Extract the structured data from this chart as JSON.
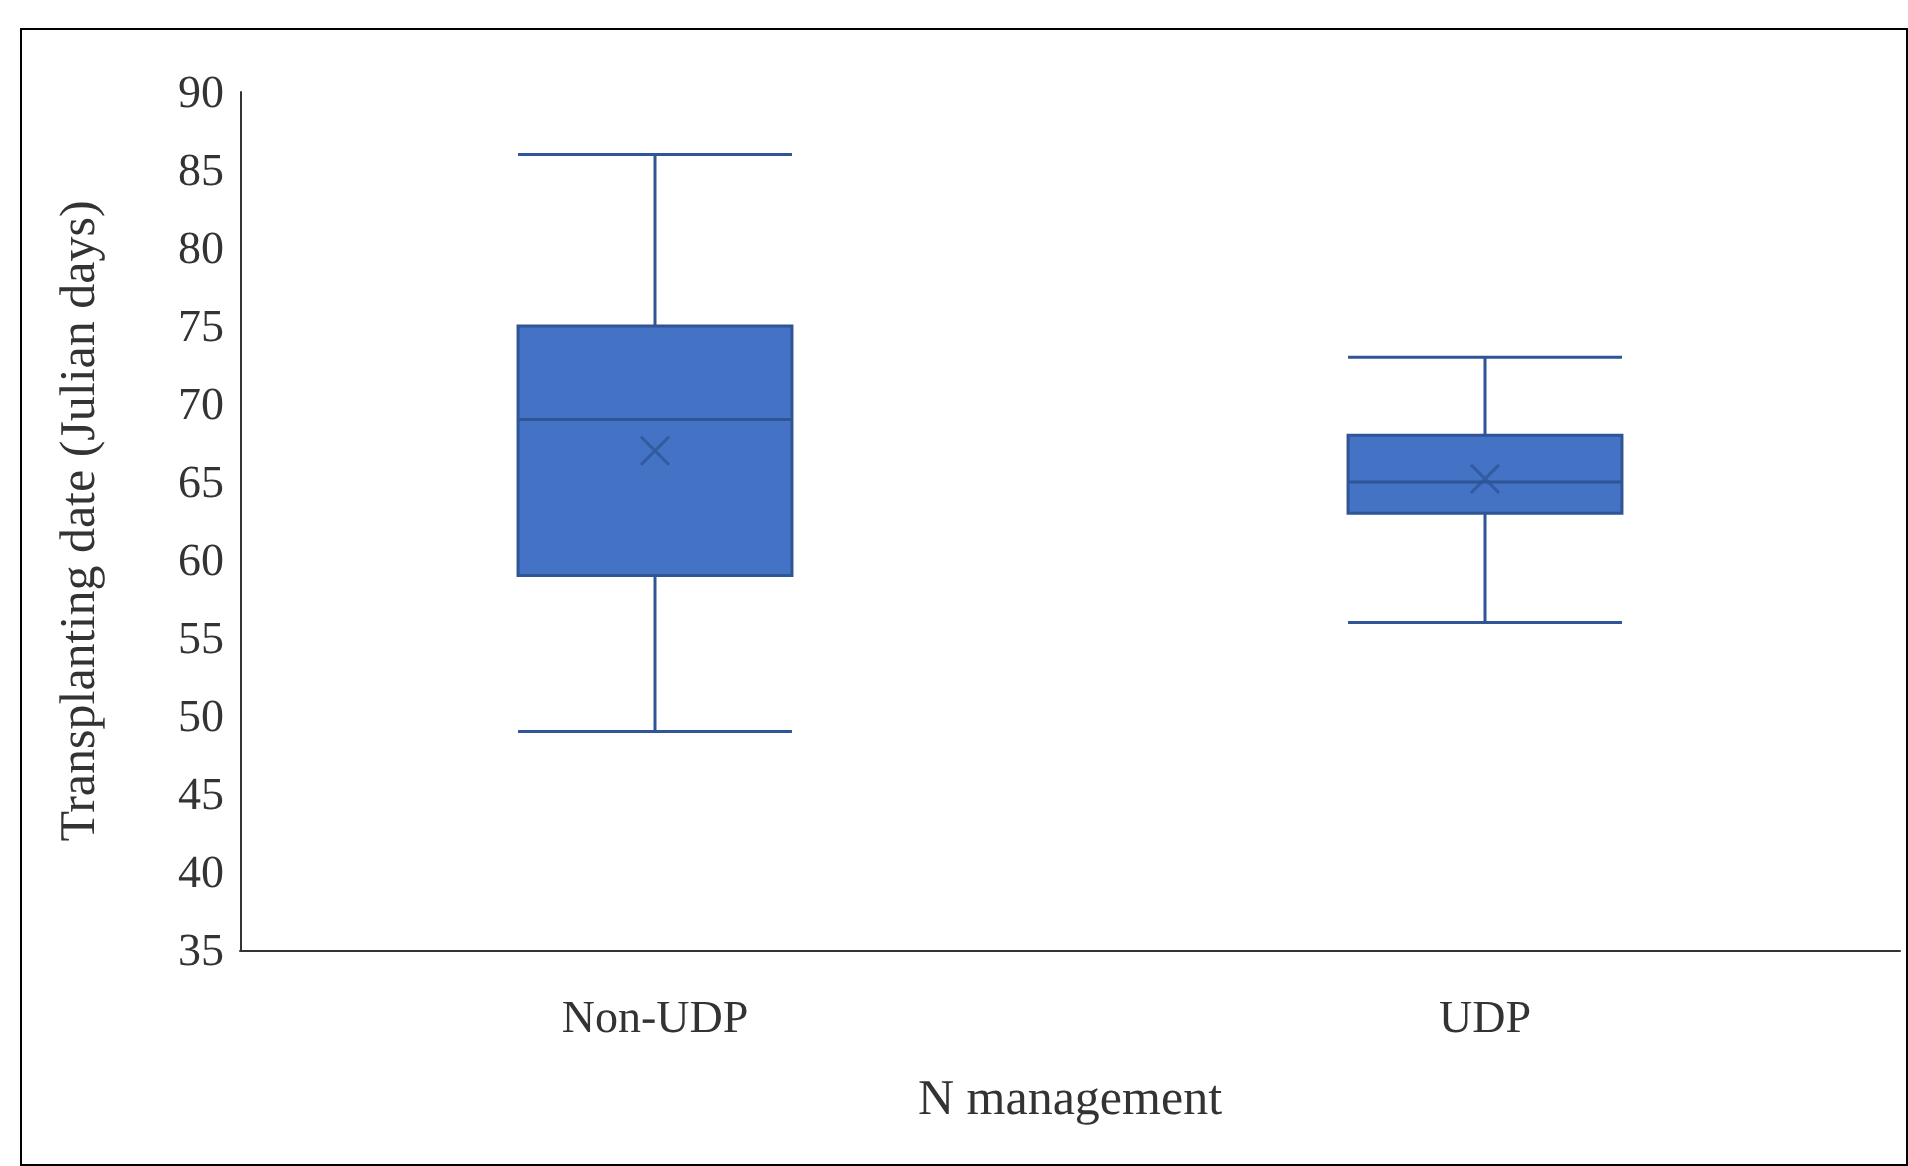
{
  "chart_data": {
    "type": "box",
    "xlabel": "N management",
    "ylabel": "Transplanting date (Julian days)",
    "categories": [
      "Non-UDP",
      "UDP"
    ],
    "boxes": [
      {
        "low": 49,
        "q1": 59,
        "median": 69,
        "q3": 75,
        "high": 86,
        "mean": 67
      },
      {
        "low": 56,
        "q1": 63,
        "median": 65,
        "q3": 68,
        "high": 73,
        "mean": 65.2
      }
    ],
    "color": "#4472c4",
    "ylim": [
      35,
      90
    ],
    "yticks": [
      35,
      40,
      45,
      50,
      55,
      60,
      65,
      70,
      75,
      80,
      85,
      90
    ],
    "grid": false,
    "marker": "cross"
  }
}
